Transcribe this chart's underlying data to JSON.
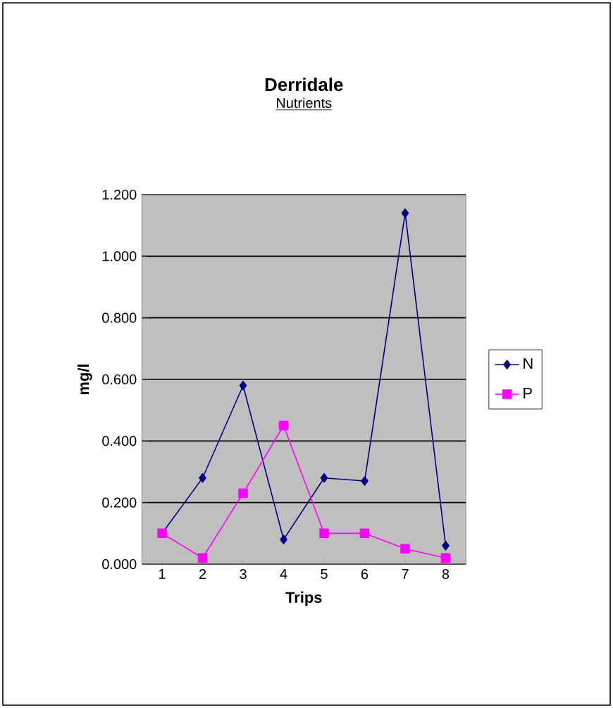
{
  "chart_data": {
    "type": "line",
    "title": "Derridale",
    "subtitle": "Nutrients",
    "xlabel": "Trips",
    "ylabel": "mg/l",
    "categories": [
      "1",
      "2",
      "3",
      "4",
      "5",
      "6",
      "7",
      "8"
    ],
    "series": [
      {
        "name": "N",
        "color": "#000080",
        "marker": "diamond",
        "values": [
          0.1,
          0.28,
          0.58,
          0.08,
          0.28,
          0.27,
          1.14,
          0.06
        ]
      },
      {
        "name": "P",
        "color": "#ff00ff",
        "marker": "square",
        "values": [
          0.1,
          0.02,
          0.23,
          0.45,
          0.1,
          0.1,
          0.05,
          0.02
        ]
      }
    ],
    "ylim": [
      0,
      1.2
    ],
    "yticks": [
      {
        "value": 0,
        "label": "0.000"
      },
      {
        "value": 0.2,
        "label": "0.200"
      },
      {
        "value": 0.4,
        "label": "0.400"
      },
      {
        "value": 0.6,
        "label": "0.600"
      },
      {
        "value": 0.8,
        "label": "0.800"
      },
      {
        "value": 1.0,
        "label": "1.000"
      },
      {
        "value": 1.2,
        "label": "1.200"
      }
    ],
    "grid": "y",
    "legend": "right",
    "line_style": "solid"
  }
}
